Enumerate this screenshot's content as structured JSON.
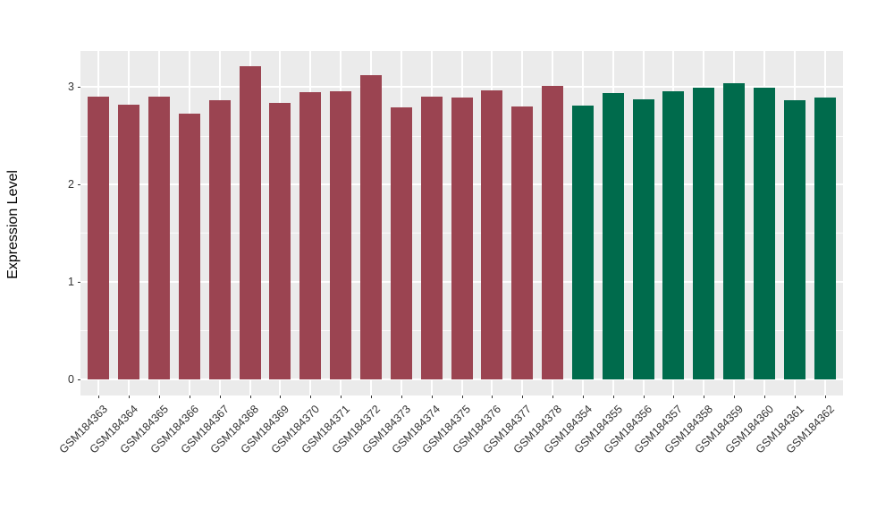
{
  "chart_data": {
    "type": "bar",
    "title": "",
    "xlabel": "",
    "ylabel": "Expression Level",
    "categories": [
      "GSM184363",
      "GSM184364",
      "GSM184365",
      "GSM184366",
      "GSM184367",
      "GSM184368",
      "GSM184369",
      "GSM184370",
      "GSM184371",
      "GSM184372",
      "GSM184373",
      "GSM184374",
      "GSM184375",
      "GSM184376",
      "GSM184377",
      "GSM184378",
      "GSM184354",
      "GSM184355",
      "GSM184356",
      "GSM184357",
      "GSM184358",
      "GSM184359",
      "GSM184360",
      "GSM184361",
      "GSM184362"
    ],
    "values": [
      2.9,
      2.82,
      2.9,
      2.73,
      2.86,
      3.21,
      2.84,
      2.95,
      2.96,
      3.12,
      2.79,
      2.9,
      2.89,
      2.97,
      2.8,
      3.01,
      2.81,
      2.94,
      2.87,
      2.96,
      2.99,
      3.04,
      2.99,
      2.86,
      2.89
    ],
    "colors": [
      "#9B4451",
      "#9B4451",
      "#9B4451",
      "#9B4451",
      "#9B4451",
      "#9B4451",
      "#9B4451",
      "#9B4451",
      "#9B4451",
      "#9B4451",
      "#9B4451",
      "#9B4451",
      "#9B4451",
      "#9B4451",
      "#9B4451",
      "#9B4451",
      "#006B4C",
      "#006B4C",
      "#006B4C",
      "#006B4C",
      "#006B4C",
      "#006B4C",
      "#006B4C",
      "#006B4C",
      "#006B4C"
    ],
    "yticks": [
      0,
      1,
      2,
      3
    ],
    "yticks_minor": [
      0.5,
      1.5,
      2.5
    ],
    "ylim": [
      -0.17,
      3.37
    ],
    "legend_position": "none",
    "grid": "on",
    "panel_bg": "#EBEBEB",
    "grid_color": "#FFFFFF"
  }
}
